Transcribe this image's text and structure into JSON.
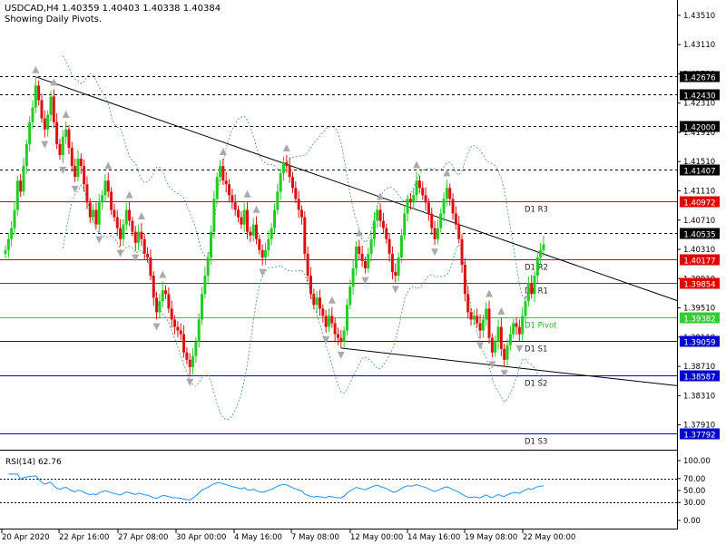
{
  "header": {
    "symbol_line": "USDCAD,H4  1.40359 1.40403 1.40338 1.40384",
    "subtitle": "Showing Daily Pivots."
  },
  "rsi": {
    "label": "RSI(14) 62.76",
    "levels": [
      70,
      30
    ],
    "ticks": [
      "100.00",
      "70.00",
      "50.00",
      "30.00",
      "0.00"
    ]
  },
  "chart_data": {
    "type": "candlestick",
    "symbol": "USDCAD",
    "timeframe": "H4",
    "price_axis_ticks": [
      "1.43510",
      "1.43110",
      "1.42710",
      "1.42310",
      "1.41910",
      "1.41510",
      "1.41110",
      "1.40710",
      "1.40310",
      "1.39910",
      "1.39510",
      "1.39110",
      "1.38710",
      "1.38310",
      "1.37910"
    ],
    "ylim": [
      1.3762,
      1.4372
    ],
    "x_labels": [
      "20 Apr 2020",
      "22 Apr 16:00",
      "27 Apr 08:00",
      "30 Apr 00:00",
      "4 May 16:00",
      "7 May 08:00",
      "12 May 00:00",
      "14 May 16:00",
      "19 May 08:00",
      "22 May 00:00"
    ],
    "marked_levels": [
      {
        "price": 1.42676,
        "text": "1.42676",
        "kind": "dashed"
      },
      {
        "price": 1.4243,
        "text": "1.42430",
        "kind": "dashed"
      },
      {
        "price": 1.42,
        "text": "1.42000",
        "kind": "dashed"
      },
      {
        "price": 1.41407,
        "text": "1.41407",
        "kind": "dashed"
      },
      {
        "price": 1.40535,
        "text": "1.40535",
        "kind": "dashed"
      }
    ],
    "pivots": [
      {
        "name": "D1 R3",
        "price": 1.40972,
        "text": "1.40972",
        "color": "#e00000"
      },
      {
        "name": "D1 R2",
        "price": 1.40177,
        "text": "1.40177",
        "color": "#e00000"
      },
      {
        "name": "D1 R1",
        "price": 1.39854,
        "text": "1.39854",
        "color": "#e00000"
      },
      {
        "name": "D1 Pivot",
        "price": 1.39382,
        "text": "1.39382",
        "color": "#33cc33"
      },
      {
        "name": "D1 S1",
        "price": 1.39059,
        "text": "1.39059",
        "color": "#0000cc"
      },
      {
        "name": "D1 S2",
        "price": 1.38587,
        "text": "1.38587",
        "color": "#0000cc"
      },
      {
        "name": "D1 S3",
        "price": 1.37792,
        "text": "1.37792",
        "color": "#0000cc"
      }
    ],
    "colors": {
      "up": "#22cc22",
      "down": "#dd1111",
      "bands": "#449966",
      "trend": "#000000",
      "fractal": "#aaaaaa"
    },
    "closes": [
      1.403,
      1.4045,
      1.406,
      1.4085,
      1.4125,
      1.411,
      1.4145,
      1.4175,
      1.4205,
      1.4225,
      1.4255,
      1.4235,
      1.421,
      1.4195,
      1.4215,
      1.424,
      1.4205,
      1.4175,
      1.416,
      1.4185,
      1.4195,
      1.417,
      1.4145,
      1.413,
      1.4155,
      1.4145,
      1.412,
      1.4095,
      1.4075,
      1.4085,
      1.4065,
      1.4095,
      1.4105,
      1.4125,
      1.411,
      1.4085,
      1.4075,
      1.406,
      1.4045,
      1.4065,
      1.4085,
      1.407,
      1.4055,
      1.404,
      1.4055,
      1.4045,
      1.4025,
      1.402,
      1.3995,
      1.3965,
      1.3945,
      1.396,
      1.3975,
      1.397,
      1.395,
      1.3935,
      1.3925,
      1.392,
      1.3915,
      1.389,
      1.388,
      1.387,
      1.3885,
      1.3905,
      1.3935,
      1.397,
      1.3995,
      1.402,
      1.4055,
      1.41,
      1.413,
      1.4145,
      1.4125,
      1.412,
      1.4105,
      1.4095,
      1.4085,
      1.4075,
      1.4065,
      1.4085,
      1.4055,
      1.405,
      1.4065,
      1.4045,
      1.403,
      1.402,
      1.403,
      1.4045,
      1.406,
      1.4085,
      1.411,
      1.4135,
      1.415,
      1.4145,
      1.413,
      1.4115,
      1.41,
      1.4085,
      1.4075,
      1.4025,
      1.3995,
      1.397,
      1.3955,
      1.3965,
      1.395,
      1.394,
      1.3925,
      1.394,
      1.393,
      1.3915,
      1.391,
      1.3905,
      1.392,
      1.3955,
      1.398,
      1.4005,
      1.4035,
      1.4025,
      1.4015,
      1.4005,
      1.4025,
      1.4045,
      1.407,
      1.4085,
      1.407,
      1.406,
      1.4045,
      1.4025,
      1.4,
      1.3995,
      1.402,
      1.405,
      1.408,
      1.41,
      1.4095,
      1.4105,
      1.4125,
      1.4115,
      1.4105,
      1.4095,
      1.408,
      1.406,
      1.4045,
      1.406,
      1.408,
      1.41,
      1.4115,
      1.41,
      1.408,
      1.4065,
      1.4045,
      1.401,
      1.397,
      1.3945,
      1.3935,
      1.394,
      1.393,
      1.392,
      1.3935,
      1.395,
      1.391,
      1.389,
      1.3905,
      1.3925,
      1.3895,
      1.388,
      1.39,
      1.3915,
      1.393,
      1.3925,
      1.3915,
      1.394,
      1.396,
      1.3985,
      1.397,
      1.3995,
      1.402,
      1.403,
      1.4038
    ]
  }
}
